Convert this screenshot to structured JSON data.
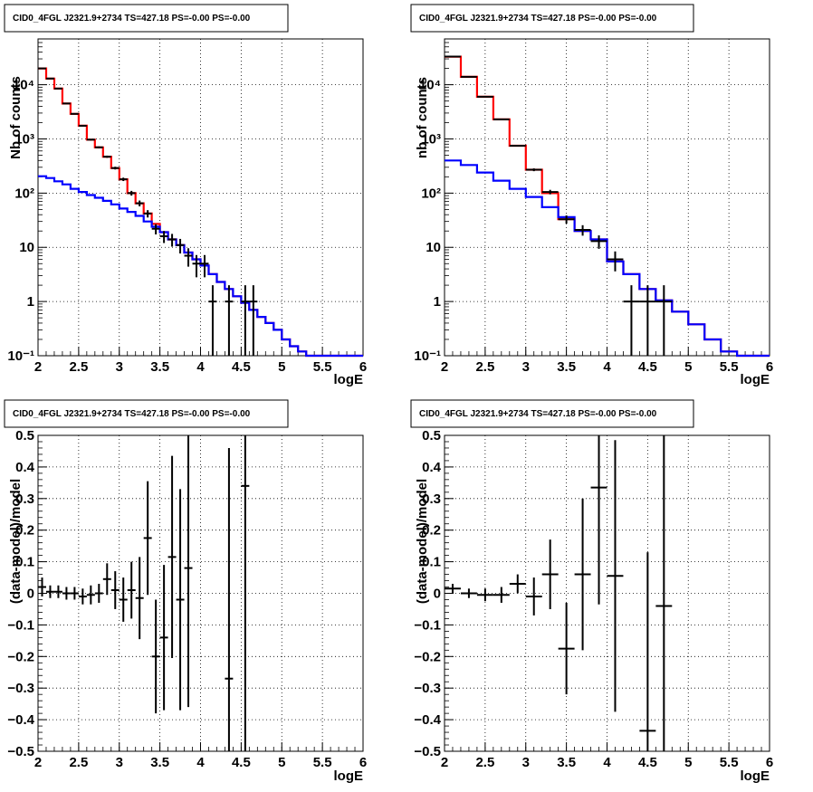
{
  "chart_data": [
    {
      "type": "line",
      "title": "CID0_4FGL J2321.9+2734 TS=427.18 PS=-0.00 PS=-0.00",
      "xlabel": "logE",
      "ylabel": "Nb of counts",
      "xlim": [
        2,
        6
      ],
      "ylim": [
        0.1,
        70000
      ],
      "yscale": "log",
      "grid": true,
      "xticks": [
        "2",
        "2.5",
        "3",
        "3.5",
        "4",
        "4.5",
        "5",
        "5.5",
        "6"
      ],
      "yticks": [
        {
          "v": 0.1,
          "label": "10⁻¹"
        },
        {
          "v": 1,
          "label": "1"
        },
        {
          "v": 10,
          "label": "10"
        },
        {
          "v": 100,
          "label": "10²"
        },
        {
          "v": 1000,
          "label": "10³"
        },
        {
          "v": 10000,
          "label": "10⁴"
        }
      ],
      "bin_edges": [
        2,
        2.1,
        2.2,
        2.3,
        2.4,
        2.5,
        2.6,
        2.7,
        2.8,
        2.9,
        3,
        3.1,
        3.2,
        3.3,
        3.4,
        3.5,
        3.6,
        3.7,
        3.8,
        3.9,
        4,
        4.1,
        4.2,
        4.3,
        4.4,
        4.5,
        4.6,
        4.7,
        4.8,
        4.9,
        5,
        5.1,
        5.2,
        5.3,
        5.4,
        5.5,
        5.6,
        5.7,
        5.8,
        5.9,
        6
      ],
      "series": [
        {
          "color": "#ff0000",
          "kind": "step",
          "values": [
            20000,
            13000,
            8500,
            4500,
            2900,
            1750,
            970,
            700,
            470,
            290,
            180,
            100,
            65,
            42,
            27,
            19,
            14,
            11,
            8,
            6,
            4.6,
            3.2,
            2.3,
            1.7,
            1.25,
            0.95,
            0.7,
            0.52,
            0.4,
            0.3,
            0.2,
            0.15,
            0.12,
            0.1,
            0.1,
            0.1,
            0.1,
            0.1,
            0.1,
            0.1
          ]
        },
        {
          "color": "#0000ff",
          "kind": "step",
          "values": [
            205,
            190,
            165,
            145,
            120,
            105,
            92,
            82,
            72,
            62,
            52,
            45,
            38,
            30,
            24,
            19,
            14,
            11,
            8,
            6,
            4.6,
            3.2,
            2.3,
            1.7,
            1.25,
            0.95,
            0.7,
            0.52,
            0.4,
            0.3,
            0.2,
            0.15,
            0.12,
            0.1,
            0.1,
            0.1,
            0.1,
            0.1,
            0.1,
            0.1
          ]
        },
        {
          "color": "#000000",
          "kind": "points",
          "points": [
            [
              2.05,
              20000,
              0.05,
              150
            ],
            [
              2.15,
              13000,
              0.05,
              120
            ],
            [
              2.25,
              8500,
              0.05,
              95
            ],
            [
              2.35,
              4500,
              0.05,
              70
            ],
            [
              2.45,
              2900,
              0.05,
              55
            ],
            [
              2.55,
              1750,
              0.05,
              42
            ],
            [
              2.65,
              970,
              0.05,
              32
            ],
            [
              2.75,
              700,
              0.05,
              27
            ],
            [
              2.85,
              470,
              0.05,
              22
            ],
            [
              2.95,
              290,
              0.05,
              17
            ],
            [
              3.05,
              180,
              0.05,
              13
            ],
            [
              3.15,
              100,
              0.05,
              10
            ],
            [
              3.25,
              65,
              0.05,
              8
            ],
            [
              3.35,
              42,
              0.05,
              6.5
            ],
            [
              3.45,
              22,
              0.05,
              4.7
            ],
            [
              3.55,
              16,
              0.05,
              4
            ],
            [
              3.65,
              14,
              0.05,
              3.7
            ],
            [
              3.75,
              11,
              0.05,
              3.3
            ],
            [
              3.85,
              7,
              0.05,
              2.6
            ],
            [
              3.95,
              5,
              0.05,
              2.2
            ],
            [
              4.05,
              5,
              0.05,
              2.2
            ],
            [
              4.15,
              1,
              0.05,
              1
            ],
            [
              4.35,
              1,
              0.05,
              1
            ],
            [
              4.55,
              1,
              0.05,
              1
            ],
            [
              4.65,
              1,
              0.05,
              1
            ]
          ]
        }
      ]
    },
    {
      "type": "line",
      "title": "CID0_4FGL J2321.9+2734 TS=427.18 PS=-0.00 PS=-0.00",
      "xlabel": "logE",
      "ylabel": "nb of counts",
      "xlim": [
        2,
        6
      ],
      "ylim": [
        0.1,
        70000
      ],
      "yscale": "log",
      "grid": true,
      "xticks": [
        "2",
        "2.5",
        "3",
        "3.5",
        "4",
        "4.5",
        "5",
        "5.5",
        "6"
      ],
      "yticks": [
        {
          "v": 0.1,
          "label": "10⁻¹"
        },
        {
          "v": 1,
          "label": "1"
        },
        {
          "v": 10,
          "label": "10"
        },
        {
          "v": 100,
          "label": "10²"
        },
        {
          "v": 1000,
          "label": "10³"
        },
        {
          "v": 10000,
          "label": "10⁴"
        }
      ],
      "bin_edges": [
        2,
        2.2,
        2.4,
        2.6,
        2.8,
        3,
        3.2,
        3.4,
        3.6,
        3.8,
        4,
        4.2,
        4.4,
        4.6,
        4.8,
        5,
        5.2,
        5.4,
        5.6,
        5.8,
        6
      ],
      "series": [
        {
          "color": "#ff0000",
          "kind": "step",
          "values": [
            33000,
            14000,
            6000,
            2300,
            750,
            270,
            100,
            33,
            20,
            14,
            5.5,
            3.2,
            1.7,
            1.05,
            0.65,
            0.38,
            0.2,
            0.12,
            0.1,
            0.1
          ]
        },
        {
          "color": "#0000ff",
          "kind": "step",
          "values": [
            400,
            330,
            240,
            170,
            120,
            85,
            55,
            36,
            20,
            14,
            5.5,
            3.2,
            1.7,
            1.05,
            0.65,
            0.38,
            0.2,
            0.12,
            0.1,
            0.1
          ]
        },
        {
          "color": "#000000",
          "kind": "points",
          "points": [
            [
              2.1,
              33000,
              0.1,
              180
            ],
            [
              2.3,
              14000,
              0.1,
              120
            ],
            [
              2.5,
              6000,
              0.1,
              77
            ],
            [
              2.7,
              2300,
              0.1,
              48
            ],
            [
              2.9,
              750,
              0.1,
              27
            ],
            [
              3.1,
              270,
              0.1,
              16
            ],
            [
              3.3,
              105,
              0.1,
              10
            ],
            [
              3.5,
              33,
              0.1,
              5.7
            ],
            [
              3.7,
              21,
              0.1,
              4.6
            ],
            [
              3.9,
              13,
              0.1,
              3.6
            ],
            [
              4.1,
              6,
              0.1,
              2.4
            ],
            [
              4.3,
              1,
              0.1,
              1
            ],
            [
              4.5,
              1,
              0.1,
              1
            ],
            [
              4.7,
              1,
              0.1,
              1
            ]
          ]
        }
      ]
    },
    {
      "type": "scatter",
      "title": "CID0_4FGL J2321.9+2734 TS=427.18 PS=-0.00 PS=-0.00",
      "xlabel": "logE",
      "ylabel": "(data-model)/model",
      "xlim": [
        2,
        6
      ],
      "ylim": [
        -0.5,
        0.5
      ],
      "yscale": "linear",
      "grid": true,
      "xticks": [
        "2",
        "2.5",
        "3",
        "3.5",
        "4",
        "4.5",
        "5",
        "5.5",
        "6"
      ],
      "yticks": [
        {
          "v": -0.5,
          "label": "−0.5"
        },
        {
          "v": -0.4,
          "label": "−0.4"
        },
        {
          "v": -0.3,
          "label": "−0.3"
        },
        {
          "v": -0.2,
          "label": "−0.2"
        },
        {
          "v": -0.1,
          "label": "−0.1"
        },
        {
          "v": 0,
          "label": "0"
        },
        {
          "v": 0.1,
          "label": "0.1"
        },
        {
          "v": 0.2,
          "label": "0.2"
        },
        {
          "v": 0.3,
          "label": "0.3"
        },
        {
          "v": 0.4,
          "label": "0.4"
        },
        {
          "v": 0.5,
          "label": "0.5"
        }
      ],
      "series": [
        {
          "color": "#000000",
          "kind": "points",
          "points": [
            [
              2.05,
              0.02,
              0.05,
              0.03
            ],
            [
              2.15,
              0.005,
              0.05,
              0.02
            ],
            [
              2.25,
              0.005,
              0.05,
              0.02
            ],
            [
              2.35,
              0.0,
              0.05,
              0.02
            ],
            [
              2.45,
              0.0,
              0.05,
              0.02
            ],
            [
              2.55,
              -0.01,
              0.05,
              0.025
            ],
            [
              2.65,
              -0.005,
              0.05,
              0.03
            ],
            [
              2.75,
              0.0,
              0.05,
              0.03
            ],
            [
              2.85,
              0.045,
              0.05,
              0.05
            ],
            [
              2.95,
              0.01,
              0.05,
              0.06
            ],
            [
              3.05,
              -0.02,
              0.05,
              0.07
            ],
            [
              3.15,
              0.01,
              0.05,
              0.09
            ],
            [
              3.25,
              -0.015,
              0.05,
              0.13
            ],
            [
              3.35,
              0.175,
              0.05,
              0.18
            ],
            [
              3.45,
              -0.2,
              0.05,
              0.18
            ],
            [
              3.55,
              -0.14,
              0.05,
              0.23
            ],
            [
              3.65,
              0.115,
              0.05,
              0.32
            ],
            [
              3.75,
              -0.02,
              0.05,
              0.35
            ],
            [
              3.85,
              0.08,
              0.05,
              0.44
            ],
            [
              4.35,
              -0.27,
              0.05,
              0.73
            ],
            [
              4.55,
              0.34,
              0.05,
              0.85
            ]
          ]
        }
      ]
    },
    {
      "type": "scatter",
      "title": "CID0_4FGL J2321.9+2734 TS=427.18 PS=-0.00 PS=-0.00",
      "xlabel": "logE",
      "ylabel": "(data-model)/model",
      "xlim": [
        2,
        6
      ],
      "ylim": [
        -0.5,
        0.5
      ],
      "yscale": "linear",
      "grid": true,
      "xticks": [
        "2",
        "2.5",
        "3",
        "3.5",
        "4",
        "4.5",
        "5",
        "5.5",
        "6"
      ],
      "yticks": [
        {
          "v": -0.5,
          "label": "−0.5"
        },
        {
          "v": -0.4,
          "label": "−0.4"
        },
        {
          "v": -0.3,
          "label": "−0.3"
        },
        {
          "v": -0.2,
          "label": "−0.2"
        },
        {
          "v": -0.1,
          "label": "−0.1"
        },
        {
          "v": 0,
          "label": "0"
        },
        {
          "v": 0.1,
          "label": "0.1"
        },
        {
          "v": 0.2,
          "label": "0.2"
        },
        {
          "v": 0.3,
          "label": "0.3"
        },
        {
          "v": 0.4,
          "label": "0.4"
        },
        {
          "v": 0.5,
          "label": "0.5"
        }
      ],
      "series": [
        {
          "color": "#000000",
          "kind": "points",
          "points": [
            [
              2.1,
              0.015,
              0.1,
              0.015
            ],
            [
              2.3,
              0.0,
              0.1,
              0.015
            ],
            [
              2.5,
              -0.005,
              0.1,
              0.02
            ],
            [
              2.7,
              -0.005,
              0.1,
              0.025
            ],
            [
              2.9,
              0.03,
              0.1,
              0.03
            ],
            [
              3.1,
              -0.01,
              0.1,
              0.06
            ],
            [
              3.3,
              0.06,
              0.1,
              0.11
            ],
            [
              3.5,
              -0.175,
              0.1,
              0.145
            ],
            [
              3.7,
              0.06,
              0.1,
              0.24
            ],
            [
              3.9,
              0.335,
              0.1,
              0.37
            ],
            [
              4.1,
              0.055,
              0.1,
              0.43
            ],
            [
              4.5,
              -0.435,
              0.1,
              0.565
            ],
            [
              4.7,
              -0.04,
              0.1,
              0.62
            ]
          ]
        }
      ]
    }
  ]
}
